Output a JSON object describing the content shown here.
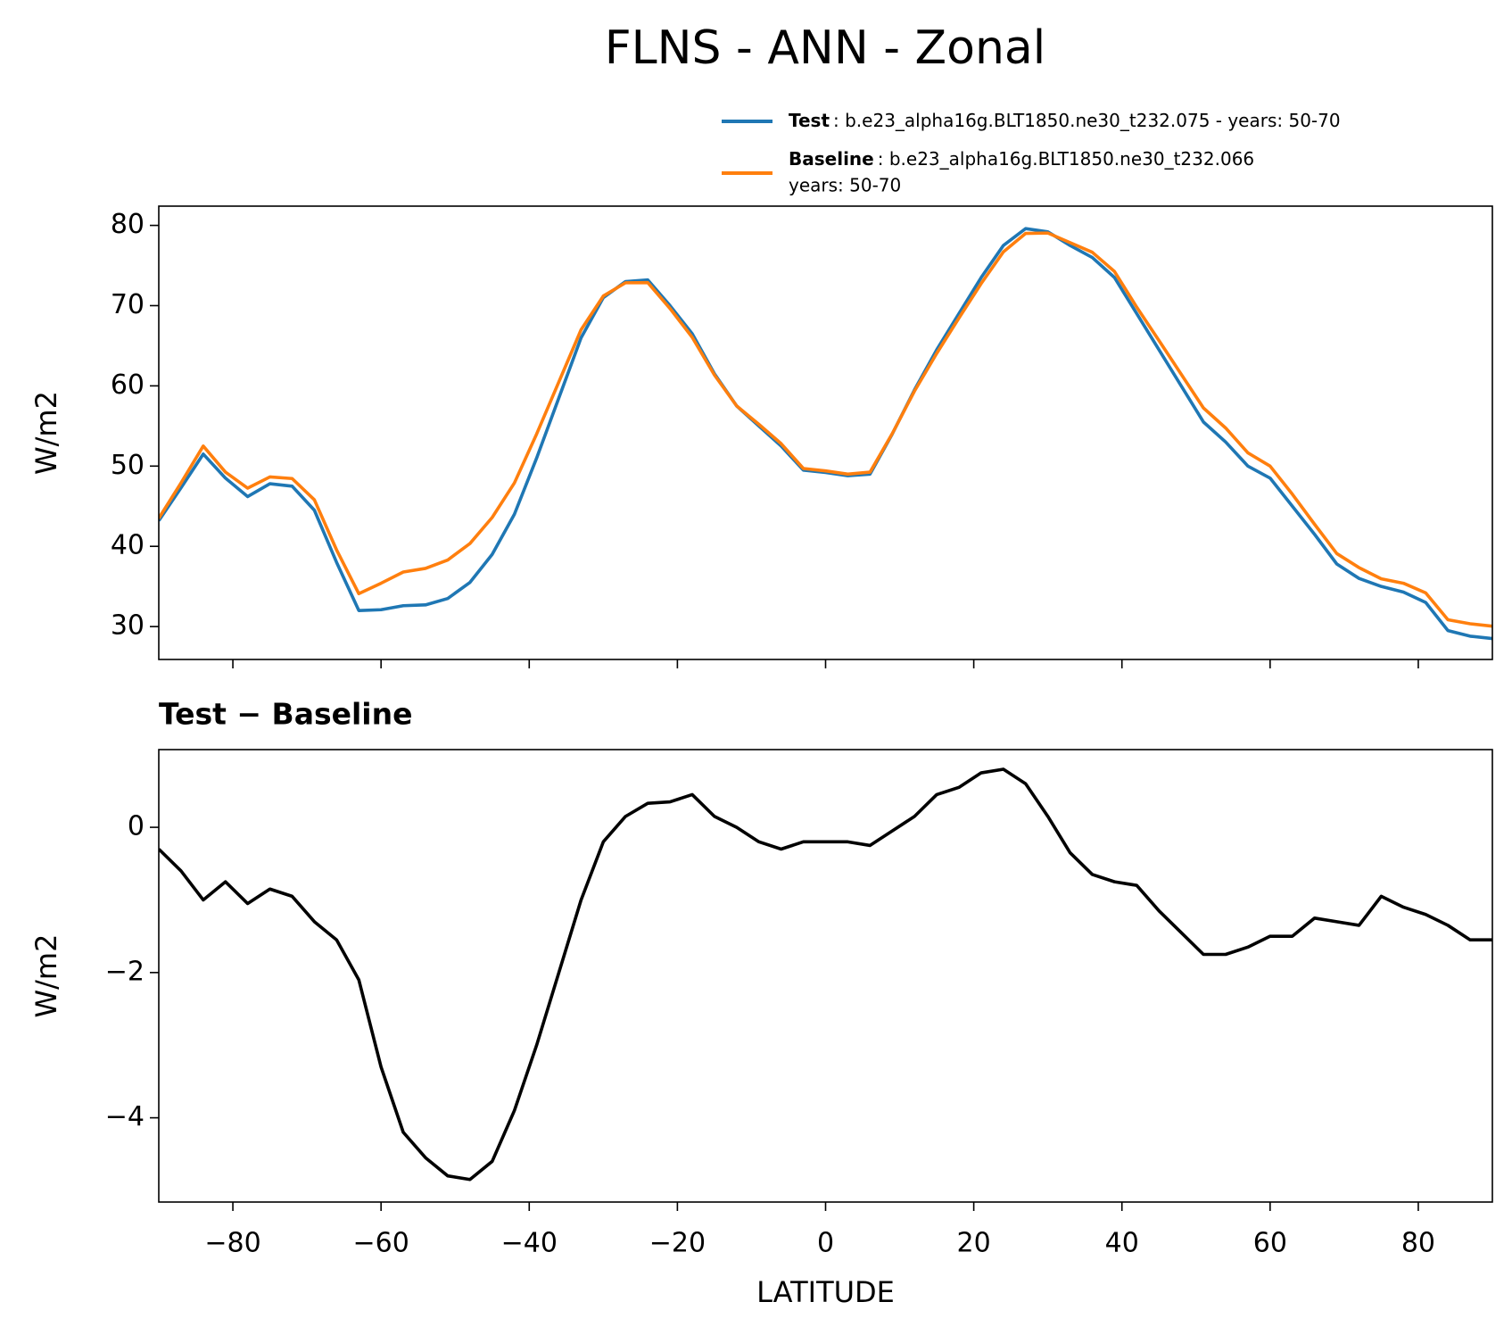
{
  "title": "FLNS - ANN - Zonal",
  "chart_data": [
    {
      "type": "line",
      "ylabel": "W/m2",
      "x": [
        -90,
        -87,
        -84,
        -81,
        -78,
        -75,
        -72,
        -69,
        -66,
        -63,
        -60,
        -57,
        -54,
        -51,
        -48,
        -45,
        -42,
        -39,
        -36,
        -33,
        -30,
        -27,
        -24,
        -21,
        -18,
        -15,
        -12,
        -9,
        -6,
        -3,
        0,
        3,
        6,
        9,
        12,
        15,
        18,
        21,
        24,
        27,
        30,
        33,
        36,
        39,
        42,
        45,
        48,
        51,
        54,
        57,
        60,
        63,
        66,
        69,
        72,
        75,
        78,
        81,
        84,
        87,
        90
      ],
      "series": [
        {
          "name": "Test",
          "label_lines": [
            ": b.e23_alpha16g.BLT1850.ne30_t232.075 - years: 50-70"
          ],
          "color": "#1f77b4",
          "values": [
            43.2,
            47.3,
            51.5,
            48.5,
            46.2,
            47.8,
            47.5,
            44.5,
            38,
            32,
            32.1,
            32.6,
            32.7,
            33.5,
            35.5,
            39,
            44,
            51,
            58.5,
            66,
            71,
            73,
            73.2,
            70,
            66.5,
            61.5,
            57.5,
            55,
            52.5,
            49.5,
            49.2,
            48.8,
            49,
            54,
            59.5,
            64.5,
            69,
            73.5,
            77.5,
            79.6,
            79.2,
            77.5,
            76,
            73.5,
            69,
            64.5,
            60,
            55.5,
            53,
            50,
            48.5,
            45,
            41.5,
            37.8,
            36,
            35,
            34.3,
            33,
            29.5,
            28.8,
            28.5
          ]
        },
        {
          "name": "Baseline",
          "label_lines": [
            ": b.e23_alpha16g.BLT1850.ne30_t232.066",
            "years: 50-70"
          ],
          "color": "#ff7f0e",
          "values": [
            43.5,
            47.9,
            52.5,
            49.25,
            47.25,
            48.65,
            48.45,
            45.8,
            39.55,
            34.1,
            35.4,
            36.8,
            37.25,
            38.3,
            40.35,
            43.6,
            47.9,
            54,
            60.5,
            67,
            71.2,
            72.85,
            72.87,
            69.65,
            66.05,
            61.35,
            57.5,
            55.2,
            52.8,
            49.7,
            49.4,
            49.0,
            49.25,
            54.05,
            59.35,
            64.05,
            68.45,
            72.75,
            76.7,
            79.0,
            79.05,
            77.85,
            76.65,
            74.25,
            69.8,
            65.65,
            61.45,
            57.25,
            54.75,
            51.65,
            50,
            46.5,
            42.75,
            39.1,
            37.35,
            35.95,
            35.4,
            34.2,
            30.85,
            30.35,
            30.05
          ]
        }
      ],
      "xlim": [
        -90,
        90
      ],
      "xticks": [
        -80,
        -60,
        -40,
        -20,
        0,
        20,
        40,
        60,
        80
      ],
      "ylim": [
        25.9,
        82.4
      ],
      "yticks": [
        30,
        40,
        50,
        60,
        70,
        80
      ]
    },
    {
      "type": "line",
      "title": "Test − Baseline",
      "ylabel": "W/m2",
      "xlabel": "LATITUDE",
      "x": [
        -90,
        -87,
        -84,
        -81,
        -78,
        -75,
        -72,
        -69,
        -66,
        -63,
        -60,
        -57,
        -54,
        -51,
        -48,
        -45,
        -42,
        -39,
        -36,
        -33,
        -30,
        -27,
        -24,
        -21,
        -18,
        -15,
        -12,
        -9,
        -6,
        -3,
        0,
        3,
        6,
        9,
        12,
        15,
        18,
        21,
        24,
        27,
        30,
        33,
        36,
        39,
        42,
        45,
        48,
        51,
        54,
        57,
        60,
        63,
        66,
        69,
        72,
        75,
        78,
        81,
        84,
        87,
        90
      ],
      "series": [
        {
          "color": "#000000",
          "values": [
            -0.3,
            -0.6,
            -1.0,
            -0.75,
            -1.05,
            -0.85,
            -0.95,
            -1.3,
            -1.55,
            -2.1,
            -3.3,
            -4.2,
            -4.55,
            -4.8,
            -4.85,
            -4.6,
            -3.9,
            -3.0,
            -2.0,
            -1.0,
            -0.2,
            0.15,
            0.33,
            0.35,
            0.45,
            0.15,
            0.0,
            -0.2,
            -0.3,
            -0.2,
            -0.2,
            -0.2,
            -0.25,
            -0.05,
            0.15,
            0.45,
            0.55,
            0.75,
            0.8,
            0.6,
            0.15,
            -0.35,
            -0.65,
            -0.75,
            -0.8,
            -1.15,
            -1.45,
            -1.75,
            -1.75,
            -1.65,
            -1.5,
            -1.5,
            -1.25,
            -1.3,
            -1.35,
            -0.95,
            -1.1,
            -1.2,
            -1.35,
            -1.55,
            -1.55
          ]
        }
      ],
      "xlim": [
        -90,
        90
      ],
      "xticks": [
        {
          "value": -80,
          "label": "−80"
        },
        {
          "value": -60,
          "label": "−60"
        },
        {
          "value": -40,
          "label": "−40"
        },
        {
          "value": -20,
          "label": "−20"
        },
        0,
        20,
        40,
        60,
        80
      ],
      "ylim": [
        -5.16,
        1.07
      ],
      "yticks": [
        {
          "value": -4,
          "label": "−4"
        },
        {
          "value": -2,
          "label": "−2"
        },
        0
      ]
    }
  ]
}
